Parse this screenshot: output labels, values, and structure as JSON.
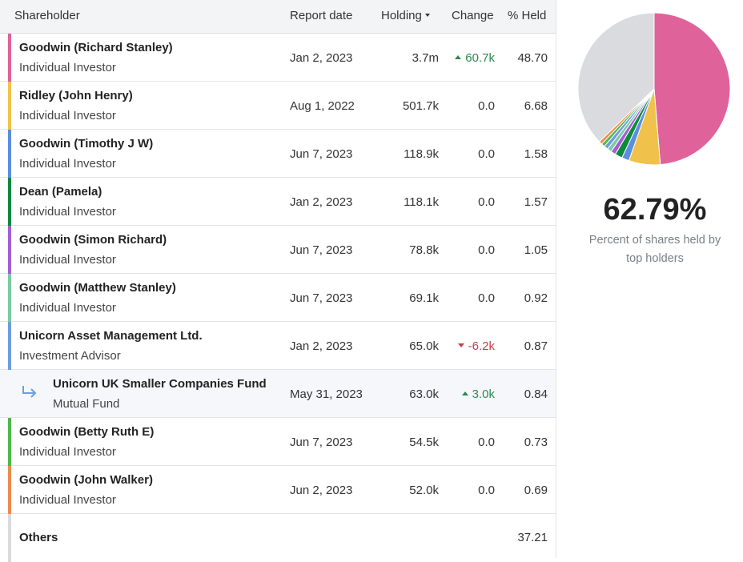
{
  "table": {
    "headers": {
      "shareholder": "Shareholder",
      "report_date": "Report date",
      "holding": "Holding",
      "change": "Change",
      "held": "% Held"
    },
    "rows": [
      {
        "name": "Goodwin (Richard Stanley)",
        "type": "Individual Investor",
        "date": "Jan 2, 2023",
        "holding": "3.7m",
        "change": "60.7k",
        "change_dir": "up",
        "held": "48.70",
        "color": "#e0629a",
        "sub": false
      },
      {
        "name": "Ridley (John Henry)",
        "type": "Individual Investor",
        "date": "Aug 1, 2022",
        "holding": "501.7k",
        "change": "0.0",
        "change_dir": "none",
        "held": "6.68",
        "color": "#f0c24b",
        "sub": false
      },
      {
        "name": "Goodwin (Timothy J W)",
        "type": "Individual Investor",
        "date": "Jun 7, 2023",
        "holding": "118.9k",
        "change": "0.0",
        "change_dir": "none",
        "held": "1.58",
        "color": "#5b8ee0",
        "sub": false
      },
      {
        "name": "Dean (Pamela)",
        "type": "Individual Investor",
        "date": "Jan 2, 2023",
        "holding": "118.1k",
        "change": "0.0",
        "change_dir": "none",
        "held": "1.57",
        "color": "#0f8a3c",
        "sub": false
      },
      {
        "name": "Goodwin (Simon Richard)",
        "type": "Individual Investor",
        "date": "Jun 7, 2023",
        "holding": "78.8k",
        "change": "0.0",
        "change_dir": "none",
        "held": "1.05",
        "color": "#a35ed6",
        "sub": false
      },
      {
        "name": "Goodwin (Matthew Stanley)",
        "type": "Individual Investor",
        "date": "Jun 7, 2023",
        "holding": "69.1k",
        "change": "0.0",
        "change_dir": "none",
        "held": "0.92",
        "color": "#7cc9a3",
        "sub": false
      },
      {
        "name": "Unicorn Asset Management Ltd.",
        "type": "Investment Advisor",
        "date": "Jan 2, 2023",
        "holding": "65.0k",
        "change": "-6.2k",
        "change_dir": "down",
        "held": "0.87",
        "color": "#6e9de0",
        "sub": false
      },
      {
        "name": "Unicorn UK Smaller Companies Fund",
        "type": "Mutual Fund",
        "date": "May 31, 2023",
        "holding": "63.0k",
        "change": "3.0k",
        "change_dir": "up",
        "held": "0.84",
        "color": "",
        "sub": true
      },
      {
        "name": "Goodwin (Betty Ruth E)",
        "type": "Individual Investor",
        "date": "Jun 7, 2023",
        "holding": "54.5k",
        "change": "0.0",
        "change_dir": "none",
        "held": "0.73",
        "color": "#4fb84a",
        "sub": false
      },
      {
        "name": "Goodwin (John Walker)",
        "type": "Individual Investor",
        "date": "Jun 2, 2023",
        "holding": "52.0k",
        "change": "0.0",
        "change_dir": "none",
        "held": "0.69",
        "color": "#ee8a4c",
        "sub": false
      }
    ],
    "others": {
      "name": "Others",
      "held": "37.21",
      "color": "#d9dbde"
    }
  },
  "summary": {
    "percent": "62.79%",
    "caption": "Percent of shares held by top holders"
  },
  "chart_data": {
    "type": "pie",
    "slices": [
      {
        "value": 48.7,
        "color": "#e0629a"
      },
      {
        "value": 6.68,
        "color": "#f0c24b"
      },
      {
        "value": 1.58,
        "color": "#5b8ee0"
      },
      {
        "value": 1.57,
        "color": "#0f8a3c"
      },
      {
        "value": 1.05,
        "color": "#a35ed6"
      },
      {
        "value": 0.92,
        "color": "#7cc9a3"
      },
      {
        "value": 0.87,
        "color": "#6e9de0"
      },
      {
        "value": 0.73,
        "color": "#4fb84a"
      },
      {
        "value": 0.69,
        "color": "#ee8a4c"
      },
      {
        "value": 37.21,
        "color": "#d9dbde"
      }
    ]
  },
  "icons": {
    "sort": "caret-down-icon",
    "up": "triangle-up-icon",
    "down": "triangle-down-icon",
    "sub": "sub-arrow-icon"
  }
}
